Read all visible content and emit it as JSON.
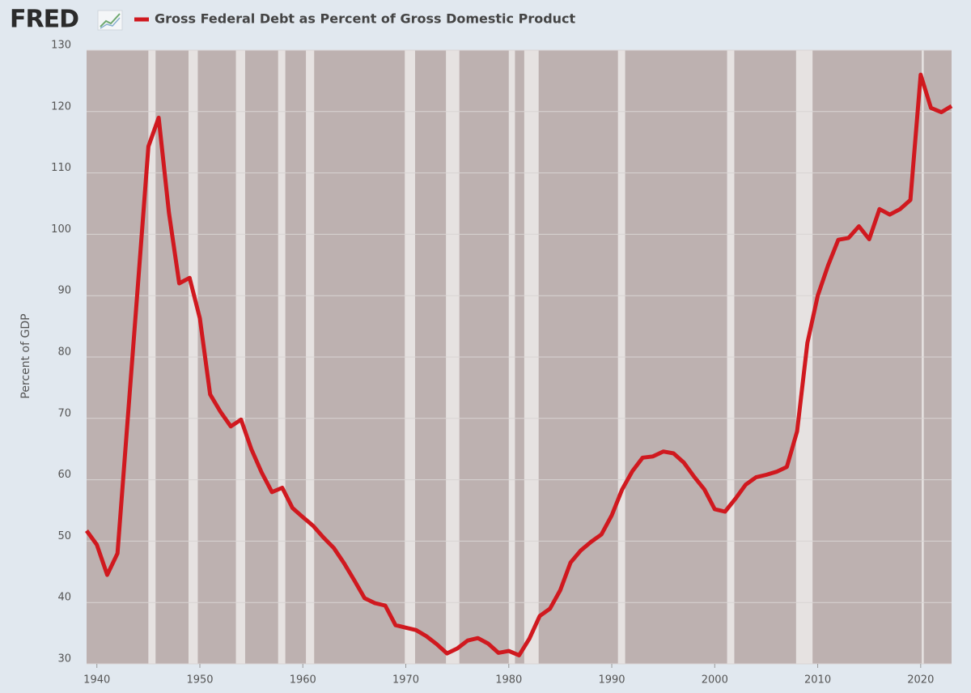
{
  "chart_data": {
    "type": "line",
    "logo": "FRED",
    "y_label": "Percent of GDP",
    "x": [
      1939,
      1940,
      1941,
      1942,
      1943,
      1944,
      1945,
      1946,
      1947,
      1948,
      1949,
      1950,
      1951,
      1952,
      1953,
      1954,
      1955,
      1956,
      1957,
      1958,
      1959,
      1960,
      1961,
      1962,
      1963,
      1964,
      1965,
      1966,
      1967,
      1968,
      1969,
      1970,
      1971,
      1972,
      1973,
      1974,
      1975,
      1976,
      1977,
      1978,
      1979,
      1980,
      1981,
      1982,
      1983,
      1984,
      1985,
      1986,
      1987,
      1988,
      1989,
      1990,
      1991,
      1992,
      1993,
      1994,
      1995,
      1996,
      1997,
      1998,
      1999,
      2000,
      2001,
      2002,
      2003,
      2004,
      2005,
      2006,
      2007,
      2008,
      2009,
      2010,
      2011,
      2012,
      2013,
      2014,
      2015,
      2016,
      2017,
      2018,
      2019,
      2020,
      2021,
      2022,
      2023
    ],
    "series": [
      {
        "name": "Gross Federal Debt as Percent of Gross Domestic Product",
        "color": "#d0191f",
        "values": [
          51.7,
          49.4,
          44.5,
          48.0,
          70.0,
          92.0,
          114.3,
          119.0,
          103.5,
          92.0,
          92.9,
          86.3,
          73.9,
          71.1,
          68.7,
          69.8,
          65.0,
          61.2,
          58.0,
          58.7,
          55.4,
          53.9,
          52.5,
          50.6,
          48.9,
          46.4,
          43.6,
          40.7,
          39.9,
          39.5,
          36.3,
          35.9,
          35.5,
          34.5,
          33.2,
          31.7,
          32.5,
          33.8,
          34.2,
          33.3,
          31.8,
          32.1,
          31.4,
          34.1,
          37.8,
          39.0,
          42.0,
          46.5,
          48.5,
          49.9,
          51.1,
          54.2,
          58.4,
          61.4,
          63.6,
          63.8,
          64.6,
          64.3,
          62.8,
          60.5,
          58.4,
          55.2,
          54.8,
          56.9,
          59.2,
          60.4,
          60.8,
          61.3,
          62.1,
          67.9,
          82.3,
          90.0,
          94.9,
          99.1,
          99.4,
          101.3,
          99.2,
          104.1,
          103.2,
          104.1,
          105.6,
          126.0,
          120.6,
          119.9,
          120.9
        ]
      }
    ],
    "xlim": [
      1939,
      2023
    ],
    "ylim": [
      30,
      130
    ],
    "xticks": [
      1940,
      1950,
      1960,
      1970,
      1980,
      1990,
      2000,
      2010,
      2020
    ],
    "yticks": [
      30,
      40,
      50,
      60,
      70,
      80,
      90,
      100,
      110,
      120,
      130
    ],
    "grid": true,
    "recessions": [
      [
        1945.0,
        1945.7
      ],
      [
        1948.9,
        1949.8
      ],
      [
        1953.5,
        1954.4
      ],
      [
        1957.6,
        1958.3
      ],
      [
        1960.3,
        1961.1
      ],
      [
        1969.9,
        1970.9
      ],
      [
        1973.9,
        1975.2
      ],
      [
        1980.0,
        1980.6
      ],
      [
        1981.5,
        1982.9
      ],
      [
        1990.6,
        1991.3
      ],
      [
        2001.2,
        2001.9
      ],
      [
        2007.9,
        2009.5
      ],
      [
        2020.1,
        2020.3
      ]
    ],
    "recession_color": "#e6e2e1",
    "plot_background": "#bdb1b0"
  }
}
